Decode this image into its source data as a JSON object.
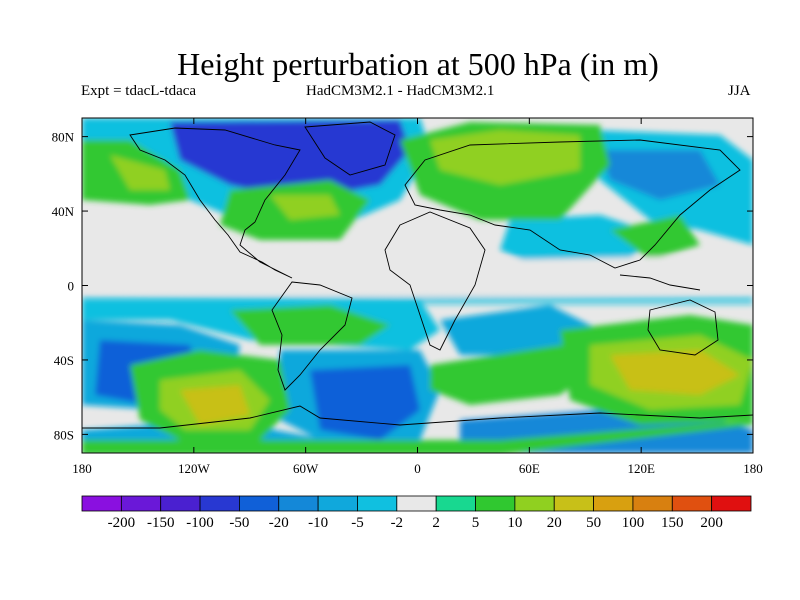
{
  "title": "Height perturbation at 500 hPa (in m)",
  "subtitle_left": "Expt = tdacL-tdaca",
  "subtitle_center": "HadCM3M2.1 - HadCM3M2.1",
  "subtitle_right": "JJA",
  "chart_data": {
    "type": "heatmap",
    "title": "Height perturbation at 500 hPa (in m)",
    "units": "m",
    "season": "JJA",
    "x_axis": {
      "range": [
        -180,
        180
      ],
      "tick_values": [
        -180,
        -120,
        -60,
        0,
        60,
        120,
        180
      ],
      "tick_labels": [
        "180",
        "120W",
        "60W",
        "0",
        "60E",
        "120E",
        "180"
      ]
    },
    "y_axis": {
      "range": [
        -90,
        90
      ],
      "tick_values": [
        80,
        40,
        0,
        -40,
        -80
      ],
      "tick_labels": [
        "80N",
        "40N",
        "0",
        "40S",
        "80S"
      ]
    },
    "colorbar": {
      "levels": [
        -200,
        -150,
        -100,
        -50,
        -20,
        -10,
        -5,
        -2,
        2,
        5,
        10,
        20,
        50,
        100,
        150,
        200
      ],
      "level_labels": [
        "-200",
        "-150",
        "-100",
        "-50",
        "-20",
        "-10",
        "-5",
        "-2",
        "2",
        "5",
        "10",
        "20",
        "50",
        "100",
        "150",
        "200"
      ],
      "colors": [
        "#8a10e0",
        "#6a18d8",
        "#4a20d0",
        "#2838d2",
        "#1060d8",
        "#1488d8",
        "#10a8dc",
        "#10c0e0",
        "#e8e8e8",
        "#18d890",
        "#30c830",
        "#90d020",
        "#c8c018",
        "#d8a010",
        "#d88010",
        "#e05010",
        "#e01010"
      ]
    },
    "field_features": [
      {
        "center": [
          -60,
          70
        ],
        "level": -50,
        "rx": 30,
        "ry": 9,
        "color_index": 3
      },
      {
        "center": [
          40,
          65
        ],
        "level": 20,
        "rx": 30,
        "ry": 10,
        "color_index": 11
      },
      {
        "center": [
          140,
          60
        ],
        "level": -10,
        "rx": 20,
        "ry": 8,
        "color_index": 5
      },
      {
        "center": [
          -170,
          -38
        ],
        "level": -50,
        "rx": 18,
        "ry": 15,
        "color_index": 3
      },
      {
        "center": [
          -130,
          -60
        ],
        "level": 50,
        "rx": 40,
        "ry": 15,
        "color_index": 12
      },
      {
        "center": [
          -40,
          -62
        ],
        "level": -50,
        "rx": 30,
        "ry": 15,
        "color_index": 3
      },
      {
        "center": [
          140,
          -42
        ],
        "level": 50,
        "rx": 40,
        "ry": 15,
        "color_index": 12
      }
    ]
  }
}
